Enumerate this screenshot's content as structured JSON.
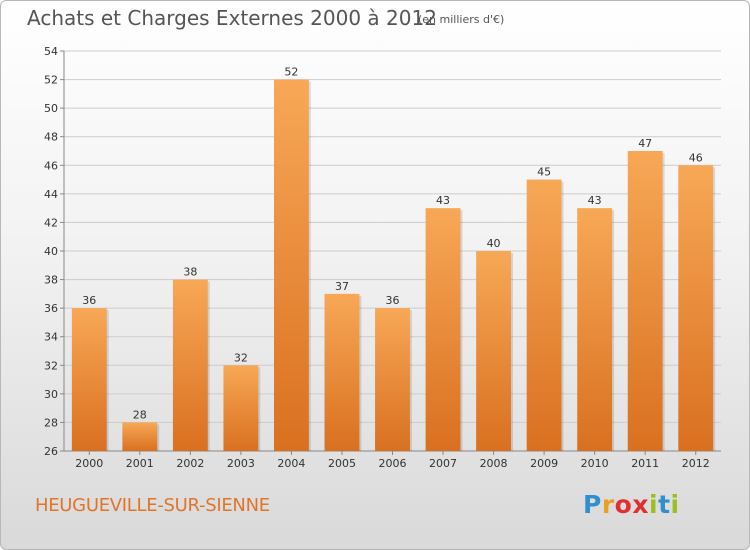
{
  "title": "Achats et Charges Externes 2000 à 2012",
  "subtitle": "(en milliers d'€)",
  "commune": "HEUGUEVILLE-SUR-SIENNE",
  "logo": {
    "letters": [
      "P",
      "r",
      "o",
      "x",
      "i",
      "t",
      "i"
    ],
    "colors": [
      "#2f8fd0",
      "#e8a020",
      "#e03030",
      "#e03030",
      "#9ac020",
      "#2f8fd0",
      "#9ac020"
    ]
  },
  "colors": {
    "bar_top": "#f7a856",
    "bar_bottom": "#d97020",
    "grid": "#cccccc",
    "axis_text": "#333333"
  },
  "chart_data": {
    "type": "bar",
    "categories": [
      "2000",
      "2001",
      "2002",
      "2003",
      "2004",
      "2005",
      "2006",
      "2007",
      "2008",
      "2009",
      "2010",
      "2011",
      "2012"
    ],
    "values": [
      36,
      28,
      38,
      32,
      52,
      37,
      36,
      43,
      40,
      45,
      43,
      47,
      46
    ],
    "ylim": [
      26,
      54
    ],
    "yticks": [
      26,
      28,
      30,
      32,
      34,
      36,
      38,
      40,
      42,
      44,
      46,
      48,
      50,
      52,
      54
    ],
    "title": "Achats et Charges Externes 2000 à 2012",
    "xlabel": "",
    "ylabel": "",
    "grid": true
  }
}
